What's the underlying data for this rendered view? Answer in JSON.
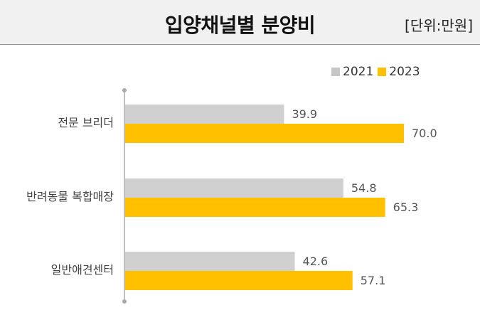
{
  "header": {
    "title": "입양채널별 분양비",
    "unit": "[단위:만원]"
  },
  "colors": {
    "series_2021": "#d0d0d0",
    "series_2023": "#ffc000",
    "axis": "#bfbfbf"
  },
  "chart_data": {
    "type": "bar",
    "orientation": "horizontal",
    "title": "입양채널별 분양비",
    "unit": "[단위:만원]",
    "categories": [
      "전문 브리더",
      "반려동물 복합매장",
      "일반애견센터"
    ],
    "series": [
      {
        "name": "2021",
        "values": [
          39.9,
          54.8,
          42.6
        ]
      },
      {
        "name": "2023",
        "values": [
          70.0,
          65.3,
          57.1
        ]
      }
    ],
    "value_labels": [
      [
        "39.9",
        "54.8",
        "42.6"
      ],
      [
        "70.0",
        "65.3",
        "57.1"
      ]
    ],
    "xlim": [
      0,
      100
    ],
    "grid": false,
    "legend": "top-right"
  }
}
